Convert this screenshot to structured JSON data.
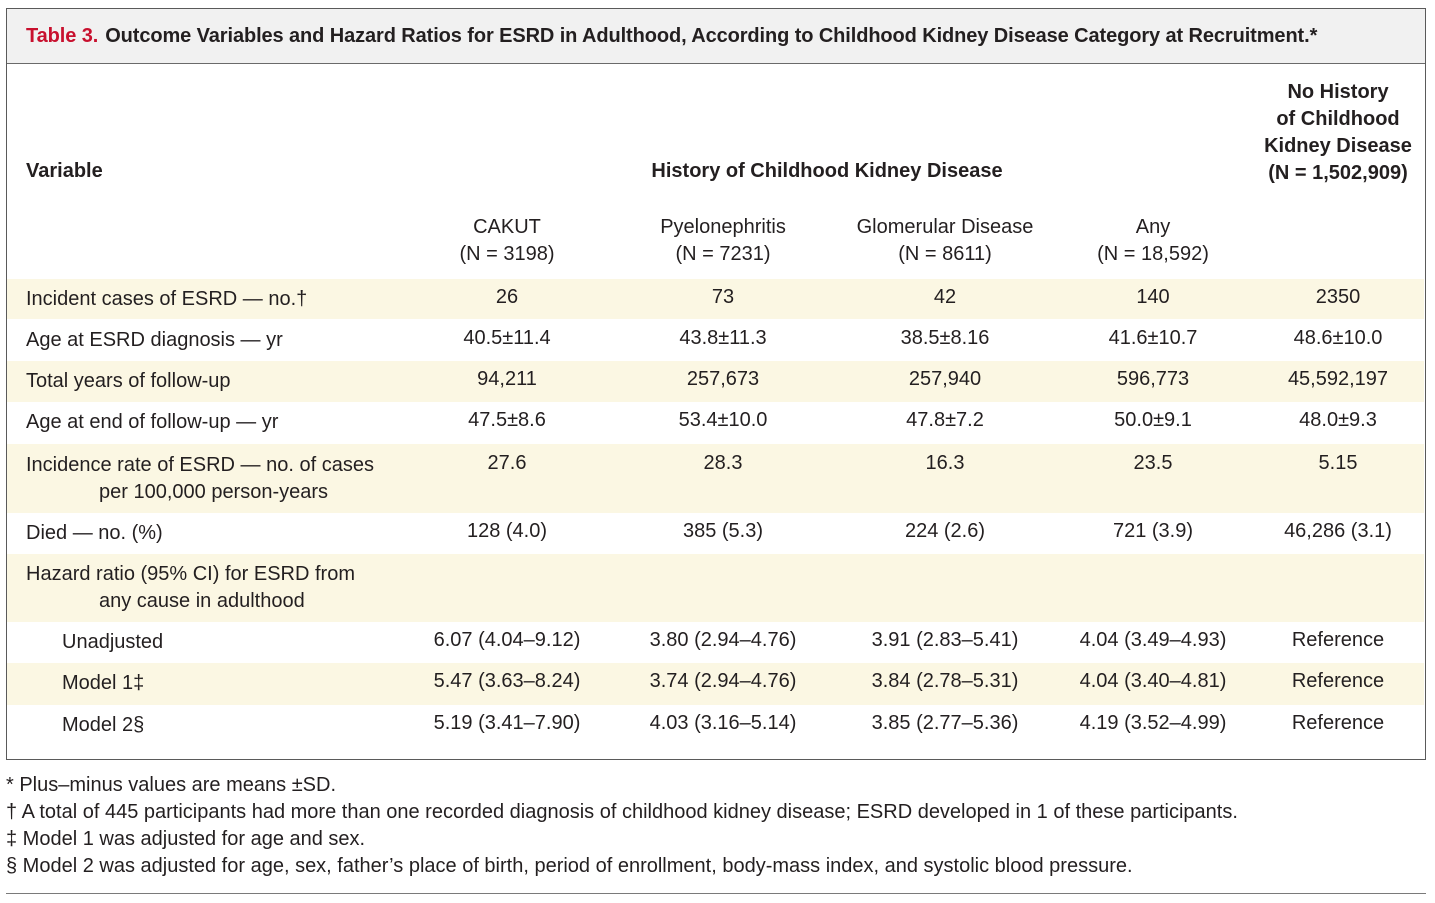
{
  "title": {
    "label": "Table 3.",
    "text": "Outcome Variables and Hazard Ratios for ESRD in Adulthood, According to Childhood Kidney Disease Category at Recruitment.*"
  },
  "header": {
    "variable": "Variable",
    "group": "History of Childhood Kidney Disease",
    "no_history": [
      "No History",
      "of Childhood",
      "Kidney Disease",
      "(N = 1,502,909)"
    ],
    "columns": [
      {
        "name": "CAKUT",
        "n": "(N = 3198)"
      },
      {
        "name": "Pyelonephritis",
        "n": "(N = 7231)"
      },
      {
        "name": "Glomerular Disease",
        "n": "(N = 8611)"
      },
      {
        "name": "Any",
        "n": "(N = 18,592)"
      }
    ]
  },
  "rows": [
    {
      "label": "Incident cases of ESRD — no.†",
      "values": [
        "26",
        "73",
        "42",
        "140",
        "2350"
      ]
    },
    {
      "label": "Age at ESRD diagnosis — yr",
      "values": [
        "40.5±11.4",
        "43.8±11.3",
        "38.5±8.16",
        "41.6±10.7",
        "48.6±10.0"
      ]
    },
    {
      "label": "Total years of follow-up",
      "values": [
        "94,211",
        "257,673",
        "257,940",
        "596,773",
        "45,592,197"
      ]
    },
    {
      "label": "Age at end of follow-up — yr",
      "values": [
        "47.5±8.6",
        "53.4±10.0",
        "47.8±7.2",
        "50.0±9.1",
        "48.0±9.3"
      ]
    },
    {
      "label": "Incidence rate of ESRD — no. of cases",
      "label2": "per 100,000 person-years",
      "values": [
        "27.6",
        "28.3",
        "16.3",
        "23.5",
        "5.15"
      ]
    },
    {
      "label": "Died — no. (%)",
      "values": [
        "128 (4.0)",
        "385 (5.3)",
        "224 (2.6)",
        "721 (3.9)",
        "46,286 (3.1)"
      ]
    },
    {
      "label": "Hazard ratio (95% CI) for ESRD from",
      "label2": "any cause in adulthood",
      "values": [
        "",
        "",
        "",
        "",
        ""
      ]
    },
    {
      "label": "Unadjusted",
      "values": [
        "6.07 (4.04–9.12)",
        "3.80 (2.94–4.76)",
        "3.91 (2.83–5.41)",
        "4.04 (3.49–4.93)",
        "Reference"
      ]
    },
    {
      "label": "Model 1‡",
      "values": [
        "5.47 (3.63–8.24)",
        "3.74 (2.94–4.76)",
        "3.84 (2.78–5.31)",
        "4.04 (3.40–4.81)",
        "Reference"
      ]
    },
    {
      "label": "Model 2§",
      "values": [
        "5.19 (3.41–7.90)",
        "4.03 (3.16–5.14)",
        "3.85 (2.77–5.36)",
        "4.19 (3.52–4.99)",
        "Reference"
      ]
    }
  ],
  "footnotes": [
    "* Plus–minus values are means ±SD.",
    "† A total of 445 participants had more than one recorded diagnosis of childhood kidney disease; ESRD developed in 1 of these participants.",
    "‡ Model 1 was adjusted for age and sex.",
    "§ Model 2 was adjusted for age, sex, father’s place of birth, period of enrollment, body-mass index, and systolic blood pressure."
  ],
  "colors": {
    "accent": "#c8102e",
    "shade": "#fbf7e3",
    "title_bg": "#f1f1f1"
  }
}
